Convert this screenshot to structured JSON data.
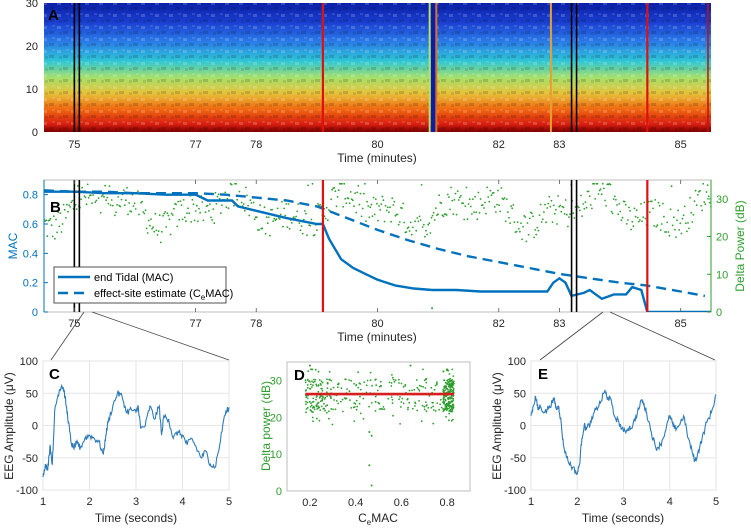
{
  "chart_data": [
    {
      "id": "A",
      "type": "heatmap",
      "panel_label": "A",
      "title": "",
      "xlabel": "Time (minutes)",
      "ylabel": "",
      "xlim": [
        74.5,
        85.5
      ],
      "ylim": [
        0,
        30
      ],
      "xticks": [
        75,
        77,
        78,
        80,
        82,
        83,
        85
      ],
      "xtick_labels": [
        "75",
        "77",
        "78",
        "80",
        "82",
        "83",
        "85"
      ],
      "yticks": [
        0,
        10,
        20,
        30
      ],
      "ytick_labels": [
        "0",
        "10",
        "20",
        "30"
      ],
      "colormap": "jet",
      "description": "EEG spectrogram; high power (red) below ~10 Hz, low power (blue) at higher frequencies",
      "high_power_band_upper_freq": 10,
      "artifact_columns_min": [
        80.85,
        80.95,
        82.85,
        85.45
      ],
      "markers": [
        {
          "kind": "black-pair",
          "x": 75.05
        },
        {
          "kind": "red",
          "x": 79.1
        },
        {
          "kind": "black-pair",
          "x": 83.25
        },
        {
          "kind": "red",
          "x": 84.45
        }
      ]
    },
    {
      "id": "B",
      "type": "line",
      "panel_label": "B",
      "xlabel": "Time (minutes)",
      "ylabel_left": "MAC",
      "ylabel_right": "Delta Power (dB)",
      "xlim": [
        74.5,
        85.5
      ],
      "ylim_left": [
        0,
        0.9
      ],
      "ylim_right": [
        0,
        35
      ],
      "xticks": [
        75,
        77,
        78,
        80,
        82,
        83,
        85
      ],
      "xtick_labels": [
        "75",
        "77",
        "78",
        "80",
        "82",
        "83",
        "85"
      ],
      "yticks_left": [
        0,
        0.2,
        0.4,
        0.6,
        0.8
      ],
      "ytick_labels_left": [
        "0",
        "0.2",
        "0.4",
        "0.6",
        "0.8"
      ],
      "yticks_right": [
        0,
        10,
        20,
        30
      ],
      "ytick_labels_right": [
        "0",
        "10",
        "20",
        "30"
      ],
      "legend": {
        "position": "lower-left",
        "entries": [
          {
            "label": "end Tidal (MAC)",
            "style": "solid"
          },
          {
            "label_main": "effect-site estimate (C",
            "label_sub": "e",
            "label_end": "MAC)",
            "style": "dashed"
          }
        ]
      },
      "series": [
        {
          "name": "end Tidal (MAC)",
          "axis": "left",
          "style": "solid",
          "color": "#0072BD",
          "x": [
            74.5,
            75.0,
            75.5,
            76.0,
            76.5,
            77.0,
            77.2,
            77.6,
            77.7,
            78.0,
            78.5,
            79.0,
            79.1,
            79.2,
            79.4,
            79.6,
            79.8,
            80.0,
            80.3,
            80.6,
            80.9,
            81.3,
            81.7,
            82.0,
            82.4,
            82.8,
            82.9,
            83.0,
            83.1,
            83.2,
            83.4,
            83.5,
            83.7,
            83.9,
            84.1,
            84.2,
            84.35,
            84.45,
            84.5,
            85.0,
            85.5
          ],
          "y": [
            0.82,
            0.82,
            0.81,
            0.81,
            0.8,
            0.8,
            0.76,
            0.76,
            0.72,
            0.69,
            0.64,
            0.6,
            0.6,
            0.5,
            0.36,
            0.3,
            0.26,
            0.22,
            0.18,
            0.16,
            0.15,
            0.15,
            0.14,
            0.14,
            0.14,
            0.14,
            0.2,
            0.23,
            0.2,
            0.11,
            0.13,
            0.15,
            0.09,
            0.12,
            0.12,
            0.17,
            0.15,
            0.0,
            0.0,
            0.0,
            0.0
          ]
        },
        {
          "name": "effect-site estimate (CeMAC)",
          "axis": "left",
          "style": "dashed",
          "color": "#0072BD",
          "x": [
            74.5,
            75.0,
            75.5,
            76.0,
            76.5,
            77.0,
            77.5,
            78.0,
            78.5,
            79.0,
            79.5,
            80.0,
            80.5,
            81.0,
            81.5,
            82.0,
            82.5,
            83.0,
            83.5,
            84.0,
            84.45,
            85.0,
            85.4
          ],
          "y": [
            0.83,
            0.82,
            0.82,
            0.81,
            0.81,
            0.81,
            0.8,
            0.78,
            0.76,
            0.72,
            0.64,
            0.56,
            0.49,
            0.43,
            0.38,
            0.34,
            0.3,
            0.26,
            0.23,
            0.2,
            0.18,
            0.14,
            0.11
          ]
        },
        {
          "name": "Delta Power",
          "axis": "right",
          "style": "scatter",
          "color": "#2e9e2e",
          "description": "~1 point per second, fluctuating mostly between 20 and 32 dB with occasional outliers",
          "typical_range_db": [
            18,
            33
          ],
          "outliers_db": [
            34,
            1
          ]
        }
      ],
      "markers": [
        {
          "kind": "black-pair",
          "x": 75.05
        },
        {
          "kind": "red",
          "x": 79.1
        },
        {
          "kind": "black-pair",
          "x": 83.25
        },
        {
          "kind": "red",
          "x": 84.45
        }
      ]
    },
    {
      "id": "C",
      "type": "line",
      "panel_label": "C",
      "xlabel": "Time (seconds)",
      "ylabel": "EEG Amplitude (μV)",
      "xlim": [
        1,
        5
      ],
      "ylim": [
        -100,
        100
      ],
      "grid": true,
      "xticks": [
        1,
        2,
        3,
        4,
        5
      ],
      "xtick_labels": [
        "1",
        "2",
        "3",
        "4",
        "5"
      ],
      "yticks": [
        -100,
        -50,
        0,
        50,
        100
      ],
      "ytick_labels": [
        "-100",
        "-50",
        "0",
        "50",
        "100"
      ],
      "series": [
        {
          "name": "EEG",
          "color": "#2f7bb8",
          "x": [
            1.0,
            1.05,
            1.1,
            1.15,
            1.2,
            1.25,
            1.3,
            1.35,
            1.4,
            1.45,
            1.5,
            1.55,
            1.6,
            1.65,
            1.7,
            1.75,
            1.8,
            1.9,
            2.0,
            2.1,
            2.2,
            2.3,
            2.35,
            2.4,
            2.5,
            2.6,
            2.7,
            2.8,
            2.9,
            3.0,
            3.05,
            3.1,
            3.2,
            3.3,
            3.4,
            3.5,
            3.55,
            3.6,
            3.7,
            3.8,
            3.9,
            4.0,
            4.1,
            4.2,
            4.3,
            4.4,
            4.5,
            4.6,
            4.7,
            4.8,
            4.9,
            5.0
          ],
          "y": [
            -80,
            -60,
            -70,
            -30,
            -60,
            20,
            40,
            55,
            62,
            55,
            30,
            5,
            -25,
            -35,
            -30,
            -28,
            -35,
            -20,
            -15,
            -20,
            -25,
            -45,
            -15,
            5,
            30,
            50,
            45,
            20,
            25,
            20,
            30,
            -5,
            0,
            30,
            10,
            30,
            -15,
            15,
            10,
            -20,
            -10,
            -15,
            -30,
            -20,
            -35,
            -50,
            -40,
            -60,
            -65,
            -30,
            15,
            28
          ]
        }
      ]
    },
    {
      "id": "D",
      "type": "scatter",
      "panel_label": "D",
      "xlabel_main": "C",
      "xlabel_sub": "e",
      "xlabel_end": "MAC",
      "ylabel": "Delta power (dB)",
      "xlim": [
        0.1,
        0.9
      ],
      "ylim": [
        0,
        35
      ],
      "xticks": [
        0.2,
        0.4,
        0.6,
        0.8
      ],
      "xtick_labels": [
        "0.2",
        "0.4",
        "0.6",
        "0.8"
      ],
      "yticks": [
        0,
        10,
        20,
        30
      ],
      "ytick_labels": [
        "0",
        "10",
        "20",
        "30"
      ],
      "series": [
        {
          "name": "Delta power vs CeMAC",
          "color": "#2e9e2e",
          "typical_range_db": [
            18,
            34
          ],
          "x_range": [
            0.18,
            0.83
          ],
          "outliers": [
            [
              0.46,
              16
            ],
            [
              0.47,
              15
            ],
            [
              0.46,
              7
            ],
            [
              0.47,
              1.5
            ],
            [
              0.64,
              34
            ],
            [
              0.2,
              34
            ]
          ]
        },
        {
          "name": "fit",
          "type": "line",
          "color": "#d62020",
          "x": [
            0.18,
            0.83
          ],
          "y": [
            26.3,
            26.3
          ]
        }
      ]
    },
    {
      "id": "E",
      "type": "line",
      "panel_label": "E",
      "xlabel": "Time (seconds)",
      "ylabel": "EEG Amplitude (μV)",
      "xlim": [
        1,
        5
      ],
      "ylim": [
        -100,
        100
      ],
      "grid": true,
      "xticks": [
        1,
        2,
        3,
        4,
        5
      ],
      "xtick_labels": [
        "1",
        "2",
        "3",
        "4",
        "5"
      ],
      "yticks": [
        -100,
        -50,
        0,
        50,
        100
      ],
      "ytick_labels": [
        "-100",
        "-50",
        "0",
        "50",
        "100"
      ],
      "series": [
        {
          "name": "EEG",
          "color": "#2f7bb8",
          "x": [
            1.0,
            1.05,
            1.1,
            1.15,
            1.2,
            1.3,
            1.4,
            1.5,
            1.55,
            1.6,
            1.65,
            1.7,
            1.8,
            1.9,
            2.0,
            2.05,
            2.1,
            2.15,
            2.2,
            2.3,
            2.4,
            2.5,
            2.6,
            2.65,
            2.7,
            2.8,
            2.9,
            3.0,
            3.1,
            3.2,
            3.3,
            3.4,
            3.45,
            3.5,
            3.6,
            3.7,
            3.8,
            3.9,
            4.0,
            4.05,
            4.1,
            4.2,
            4.3,
            4.4,
            4.5,
            4.55,
            4.6,
            4.7,
            4.8,
            4.9,
            5.0
          ],
          "y": [
            15,
            30,
            45,
            25,
            30,
            20,
            30,
            40,
            25,
            30,
            5,
            -30,
            -55,
            -65,
            -75,
            -60,
            -20,
            0,
            -5,
            5,
            25,
            35,
            55,
            40,
            45,
            15,
            5,
            -10,
            -5,
            0,
            20,
            40,
            30,
            20,
            -10,
            -35,
            -30,
            -10,
            15,
            5,
            -5,
            0,
            15,
            -20,
            -45,
            -55,
            -45,
            -20,
            5,
            20,
            48
          ]
        }
      ]
    }
  ]
}
